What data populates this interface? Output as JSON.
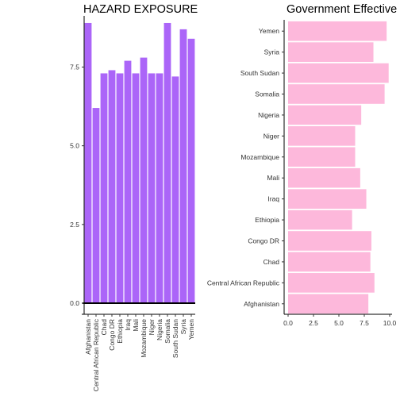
{
  "chart_data": [
    {
      "type": "bar",
      "orientation": "vertical",
      "title": "HAZARD EXPOSURE",
      "xlabel": "",
      "ylabel": "",
      "categories": [
        "Afghanistan",
        "Central African Republic",
        "Chad",
        "Congo DR",
        "Ethiopia",
        "Iraq",
        "Mali",
        "Mozambique",
        "Niger",
        "Nigeria",
        "Somalia",
        "South Sudan",
        "Syria",
        "Yemen"
      ],
      "values": [
        8.9,
        6.2,
        7.3,
        7.4,
        7.3,
        7.7,
        7.3,
        7.8,
        7.3,
        7.3,
        8.9,
        7.2,
        8.7,
        8.4
      ],
      "ylim": [
        0,
        9
      ],
      "yticks": [
        0.0,
        2.5,
        5.0,
        7.5
      ],
      "ytick_labels": [
        "0.0",
        "2.5",
        "5.0",
        "7.5"
      ],
      "color": "#ab65f8",
      "hline": 0,
      "grid": false
    },
    {
      "type": "bar",
      "orientation": "horizontal",
      "title": "Government Effective",
      "xlabel": "",
      "ylabel": "",
      "categories": [
        "Afghanistan",
        "Central African Republic",
        "Chad",
        "Congo DR",
        "Ethiopia",
        "Iraq",
        "Mali",
        "Mozambique",
        "Niger",
        "Nigeria",
        "Somalia",
        "South Sudan",
        "Syria",
        "Yemen"
      ],
      "values": [
        7.9,
        8.5,
        8.1,
        8.2,
        6.3,
        7.7,
        7.1,
        6.6,
        6.6,
        7.2,
        9.5,
        9.9,
        8.4,
        9.7
      ],
      "xlim": [
        -0.5,
        10
      ],
      "xticks": [
        0.0,
        2.5,
        5.0,
        7.5,
        10.0
      ],
      "xtick_labels": [
        "0.0",
        "2.5",
        "5.0",
        "7.5",
        "10.0"
      ],
      "color": "#fdb8db",
      "grid": false
    }
  ]
}
